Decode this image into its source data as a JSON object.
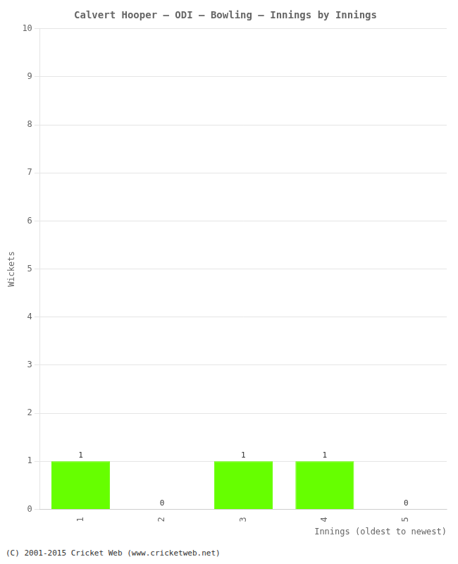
{
  "chart_data": {
    "type": "bar",
    "title": "Calvert Hooper – ODI – Bowling – Innings by Innings",
    "xlabel": "Innings (oldest to newest)",
    "ylabel": "Wickets",
    "categories": [
      "1",
      "2",
      "3",
      "4",
      "5"
    ],
    "values": [
      1,
      0,
      1,
      1,
      0
    ],
    "color": "#66ff00",
    "ylim": [
      0,
      10
    ],
    "yticks": [
      0,
      1,
      2,
      3,
      4,
      5,
      6,
      7,
      8,
      9,
      10
    ],
    "grid": true,
    "data_labels": true,
    "footer": "(C) 2001-2015 Cricket Web (www.cricketweb.net)"
  }
}
